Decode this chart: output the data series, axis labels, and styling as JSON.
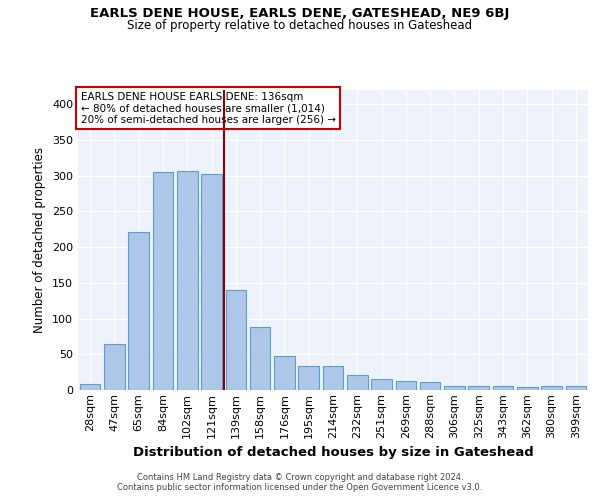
{
  "title1": "EARLS DENE HOUSE, EARLS DENE, GATESHEAD, NE9 6BJ",
  "title2": "Size of property relative to detached houses in Gateshead",
  "xlabel": "Distribution of detached houses by size in Gateshead",
  "ylabel": "Number of detached properties",
  "categories": [
    "28sqm",
    "47sqm",
    "65sqm",
    "84sqm",
    "102sqm",
    "121sqm",
    "139sqm",
    "158sqm",
    "176sqm",
    "195sqm",
    "214sqm",
    "232sqm",
    "251sqm",
    "269sqm",
    "288sqm",
    "306sqm",
    "325sqm",
    "343sqm",
    "362sqm",
    "380sqm",
    "399sqm"
  ],
  "values": [
    9,
    64,
    221,
    305,
    306,
    302,
    140,
    88,
    47,
    33,
    33,
    21,
    15,
    12,
    11,
    5,
    5,
    5,
    4,
    5,
    5
  ],
  "bar_color": "#aec6e8",
  "bar_edge_color": "#5a9fd4",
  "bg_color": "#eef3fb",
  "grid_color": "#ffffff",
  "vline_x": 5.5,
  "vline_color": "#8b0000",
  "annotation_text": "EARLS DENE HOUSE EARLS DENE: 136sqm\n← 80% of detached houses are smaller (1,014)\n20% of semi-detached houses are larger (256) →",
  "annotation_box_color": "#ffffff",
  "annotation_box_edge": "#cc0000",
  "ylim": [
    0,
    420
  ],
  "yticks": [
    0,
    50,
    100,
    150,
    200,
    250,
    300,
    350,
    400
  ],
  "footer1": "Contains HM Land Registry data © Crown copyright and database right 2024.",
  "footer2": "Contains public sector information licensed under the Open Government Licence v3.0."
}
